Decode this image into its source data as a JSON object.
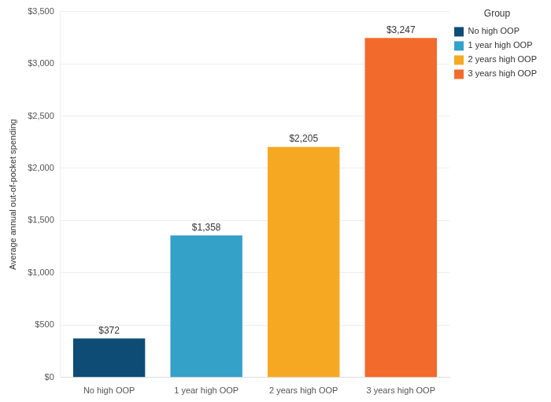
{
  "chart_data": {
    "type": "bar",
    "y_label": "Average annual out-of-pocket spending",
    "legend_title": "Group",
    "categories": [
      "No high OOP",
      "1 year high OOP",
      "2 years high OOP",
      "3 years high OOP"
    ],
    "values": [
      372,
      1358,
      2205,
      3247
    ],
    "value_labels": [
      "$372",
      "$1,358",
      "$2,205",
      "$3,247"
    ],
    "colors": [
      "#0f4c75",
      "#34a1c9",
      "#f7a823",
      "#f26a2c"
    ],
    "ylim": [
      0,
      3500
    ],
    "yticks": [
      {
        "value": 0,
        "label": "$0"
      },
      {
        "value": 500,
        "label": "$500"
      },
      {
        "value": 1000,
        "label": "$1,000"
      },
      {
        "value": 1500,
        "label": "$1,500"
      },
      {
        "value": 2000,
        "label": "$2,000"
      },
      {
        "value": 2500,
        "label": "$2,500"
      },
      {
        "value": 3000,
        "label": "$3,000"
      },
      {
        "value": 3500,
        "label": "$3,500"
      }
    ],
    "grid": true,
    "data_labels": true,
    "legend": "top right"
  }
}
